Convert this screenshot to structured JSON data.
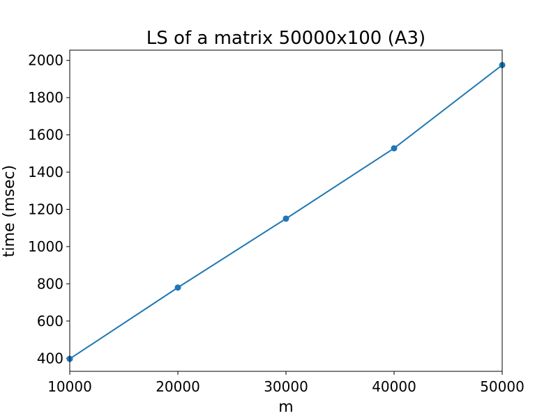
{
  "chart_data": {
    "type": "line",
    "title": "LS of a matrix 50000x100 (A3)",
    "xlabel": "m",
    "ylabel": "time (msec)",
    "x": [
      10000,
      20000,
      30000,
      40000,
      50000
    ],
    "series": [
      {
        "values": [
          397,
          780,
          1150,
          1528,
          1975
        ],
        "color": "#1f77b4",
        "marker": "circle"
      }
    ],
    "xlim": [
      10000,
      50000
    ],
    "ylim": [
      330,
      2055
    ],
    "xticks": [
      10000,
      20000,
      30000,
      40000,
      50000
    ],
    "yticks": [
      400,
      600,
      800,
      1000,
      1200,
      1400,
      1600,
      1800,
      2000
    ],
    "grid": false,
    "legend": "none"
  }
}
